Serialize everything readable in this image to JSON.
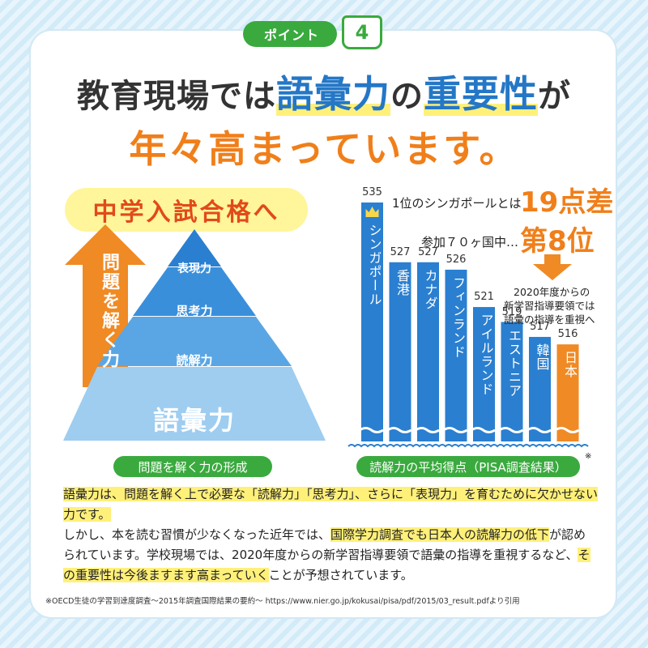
{
  "badge": {
    "label": "ポイント",
    "number": "4"
  },
  "headline": {
    "line1_pre": "教育現場では",
    "line1_hl1": "語彙力",
    "line1_mid": "の",
    "line1_hl2": "重要性",
    "line1_post": "が",
    "line2": "年々高まっています。"
  },
  "left_panel": {
    "goal": "中学入試合格へ",
    "arrow_text": "問題を解く力",
    "pyramid": [
      "表現力",
      "思考力",
      "読解力",
      "語彙力"
    ],
    "caption": "問題を解く力の形成"
  },
  "chart_data": {
    "type": "bar",
    "categories": [
      "シンガポール",
      "香港",
      "カナダ",
      "フィンランド",
      "アイルランド",
      "エストニア",
      "韓国",
      "日本"
    ],
    "values": [
      535,
      527,
      527,
      526,
      521,
      519,
      517,
      516
    ],
    "highlight": "日本",
    "colors": {
      "default": "#2a7fd0",
      "highlight": "#f08a24"
    },
    "caption": "読解力の平均得点（PISA調査結果）",
    "caption_mark": "※",
    "crown_icon": "crown-icon"
  },
  "chart_notes": {
    "gap_pre": "1位のシンガポールとは",
    "gap_big": "19点差",
    "rank_pre": "参加７０ヶ国中…",
    "rank_big": "第8位",
    "policy": [
      "2020年度からの",
      "新学習指導要領では",
      "語彙の指導を重視へ"
    ]
  },
  "body": {
    "p1": "語彙力は、問題を解く上で必要な「読解力」「思考力」、さらに「表現力」を育むために欠かせない力です。",
    "p2_a": "しかし、本を読む習慣が少なくなった近年では、",
    "p2_b": "国際学力調査でも日本人の読解力の低下",
    "p2_c": "が認められています。学校現場では、2020年度からの新学習指導要領で語彙の指導を重視するなど、",
    "p2_d": "その重要性は今後ますます高まっていく",
    "p2_e": "ことが予想されています。"
  },
  "footnote": "※OECD生徒の学習到達度調査～2015年調査国際結果の要約～ https://www.nier.go.jp/kokusai/pisa/pdf/2015/03_result.pdfより引用"
}
